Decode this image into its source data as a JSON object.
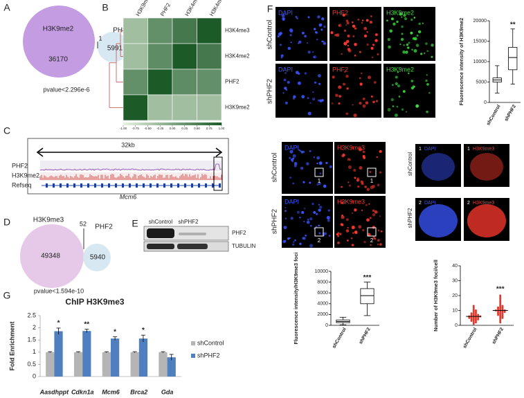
{
  "panel_a": {
    "letter": "A",
    "set1": "H3K9me2",
    "set2": "PHF2",
    "only1": "36170",
    "overlap": "1",
    "only2": "5991",
    "pvalue": "pvalue<2.296e-6"
  },
  "panel_b": {
    "letter": "B",
    "columns": [
      "H3K9me2",
      "PHF2",
      "H3K4me2",
      "H3K4me3"
    ],
    "rows": [
      "H3K4me3",
      "H3K4me2",
      "PHF2",
      "H3K9me2"
    ],
    "matrix": [
      [
        -0.3,
        0.3,
        0.6,
        1
      ],
      [
        -0.3,
        0.35,
        1,
        0.6
      ],
      [
        0.3,
        1,
        0.35,
        0.3
      ],
      [
        1,
        -0.3,
        -0.3,
        -0.3
      ]
    ],
    "colorbar_lim": [
      -1,
      1
    ],
    "colorbar_ticks": [
      {
        "value": -1,
        "label": "-1.00"
      },
      {
        "value": -0.75,
        "label": "-0.75"
      },
      {
        "value": -0.5,
        "label": "-0.50"
      },
      {
        "value": -0.25,
        "label": "-0.25"
      },
      {
        "value": 0,
        "label": "0.00"
      },
      {
        "value": 0.25,
        "label": "0.25"
      },
      {
        "value": 0.5,
        "label": "0.50"
      },
      {
        "value": 0.75,
        "label": "0.75"
      },
      {
        "value": 1,
        "label": "1.00"
      }
    ]
  },
  "panel_c": {
    "letter": "C",
    "scale": "32kb",
    "tracks": [
      "PHF2",
      "H3K9me2",
      "Refseq"
    ],
    "gene": "Mcm6"
  },
  "panel_d": {
    "letter": "D",
    "set1": "H3K9me3",
    "set2": "PHF2",
    "only1": "49348",
    "overlap": "52",
    "only2": "5940",
    "pvalue": "pvalue<1.594e-10"
  },
  "panel_e": {
    "letter": "E",
    "lanes": [
      "shControl",
      "shPHF2"
    ],
    "bands": [
      "PHF2",
      "TUBULIN"
    ]
  },
  "panel_f": {
    "letter": "F",
    "top": {
      "conditions": [
        "shControl",
        "shPHF2"
      ],
      "channels": [
        "DAPI",
        "PHF2",
        "H3K9me2"
      ]
    },
    "middle": {
      "conditions": [
        "shControl",
        "shPHF2"
      ],
      "channels": [
        "DAPI",
        "H3K9me3"
      ],
      "roi": [
        "1",
        "2"
      ]
    },
    "box_h3k9me2": {
      "ylabel": "Fluorescence intensity of H3K9me2",
      "ylim": [
        0,
        20000
      ],
      "yticks": [
        0,
        5000,
        10000,
        15000,
        20000
      ],
      "categories": [
        "shControl",
        "shPHF2"
      ],
      "significance": "**",
      "boxes": [
        {
          "min": 2300,
          "q1": 5000,
          "median": 5500,
          "q3": 6000,
          "max": 9000
        },
        {
          "min": 4500,
          "q1": 8000,
          "median": 11000,
          "q3": 13500,
          "max": 18000
        }
      ]
    },
    "box_h3k9me3": {
      "ylabel": "Fluorescence intensity/H3K9me3 foci",
      "ylim": [
        0,
        10000
      ],
      "yticks": [
        0,
        2000,
        4000,
        6000,
        8000,
        10000
      ],
      "categories": [
        "shControl",
        "shPHF2"
      ],
      "significance": "***",
      "boxes": [
        {
          "min": 100,
          "q1": 500,
          "median": 700,
          "q3": 1000,
          "max": 1500
        },
        {
          "min": 1800,
          "q1": 4000,
          "median": 5500,
          "q3": 6800,
          "max": 8000
        }
      ]
    },
    "dots_foci": {
      "ylabel": "Number of H3K9me3 foci/cell",
      "ylim": [
        0,
        40
      ],
      "yticks": [
        0,
        10,
        20,
        30,
        40
      ],
      "categories": [
        "shControl",
        "shPHF2"
      ],
      "significance": "***",
      "color": "#e03a2e",
      "groups": [
        [
          1,
          2,
          2,
          3,
          3,
          3,
          4,
          4,
          4,
          4,
          5,
          5,
          5,
          5,
          5,
          6,
          6,
          6,
          6,
          6,
          6,
          7,
          7,
          7,
          7,
          8,
          8,
          8,
          9,
          9,
          10,
          10,
          11,
          12,
          13
        ],
        [
          2,
          3,
          4,
          5,
          5,
          6,
          6,
          7,
          7,
          7,
          8,
          8,
          8,
          9,
          9,
          9,
          9,
          10,
          10,
          10,
          10,
          10,
          11,
          11,
          11,
          12,
          12,
          12,
          13,
          13,
          14,
          15,
          16,
          17,
          18,
          19,
          20
        ]
      ],
      "means": [
        6,
        10
      ]
    }
  },
  "panel_g": {
    "letter": "G",
    "title": "ChIP H3K9me3",
    "ylabel": "Fold Enrichment",
    "categories": [
      "Aasdhppt",
      "Cdkn1a",
      "Mcm6",
      "Brca2",
      "Gda"
    ],
    "ylim": [
      0,
      2.5
    ],
    "yticks": [
      0,
      0.5,
      1,
      1.5,
      2,
      2.5
    ],
    "series": [
      {
        "name": "shControl",
        "color": "#b5b5b5",
        "values": [
          1,
          1,
          1,
          1,
          1
        ],
        "errors": [
          0.02,
          0.02,
          0.02,
          0.02,
          0.02
        ]
      },
      {
        "name": "shPHF2",
        "color": "#4f7fbf",
        "values": [
          1.86,
          1.87,
          1.56,
          1.56,
          0.79
        ],
        "errors": [
          0.13,
          0.07,
          0.07,
          0.14,
          0.12
        ]
      }
    ],
    "significance": [
      "*",
      "**",
      "*",
      "*",
      null
    ]
  }
}
